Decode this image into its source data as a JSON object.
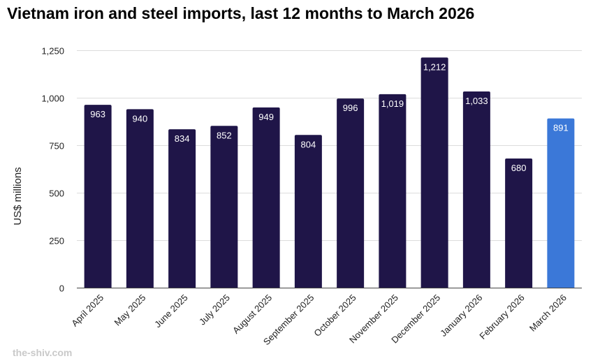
{
  "colors": {
    "bar": "#1f1548",
    "highlight": "#3b78d8",
    "grid": "#dcdcdc",
    "text": "#222222",
    "watermark": "#c9c9c9"
  },
  "chart_data": {
    "type": "bar",
    "title": "Vietnam iron and steel imports, last 12 months to March 2026",
    "xlabel": "",
    "ylabel": "US$ millions",
    "ylim": [
      0,
      1250
    ],
    "yticks": [
      0,
      250,
      500,
      750,
      1000,
      1250
    ],
    "ytick_labels": [
      "0",
      "250",
      "500",
      "750",
      "1,000",
      "1,250"
    ],
    "categories": [
      "April 2025",
      "May 2025",
      "June 2025",
      "July 2025",
      "August 2025",
      "September 2025",
      "October 2025",
      "November 2025",
      "December 2025",
      "January 2026",
      "February 2026",
      "March 2026"
    ],
    "values": [
      963,
      940,
      834,
      852,
      949,
      804,
      996,
      1019,
      1212,
      1033,
      680,
      891
    ],
    "value_labels": [
      "963",
      "940",
      "834",
      "852",
      "949",
      "804",
      "996",
      "1,019",
      "1,212",
      "1,033",
      "680",
      "891"
    ],
    "highlight_index": 11,
    "grid": true
  },
  "footer": {
    "watermark": "the-shiv.com"
  }
}
